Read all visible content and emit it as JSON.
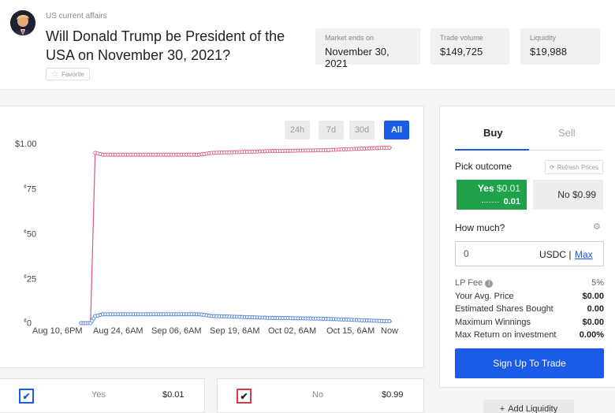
{
  "market": {
    "category": "US current affairs",
    "title": "Will Donald Trump be President of the USA on November 30, 2021?",
    "favorite_label": "Favorite"
  },
  "stats": {
    "ends_label": "Market ends on",
    "ends_value": "November 30, 2021",
    "volume_label": "Trade volume",
    "volume_value": "$149,725",
    "liquidity_label": "Liquidity",
    "liquidity_value": "$19,988"
  },
  "chart_controls": {
    "btn_24h": "24h",
    "btn_7d": "7d",
    "btn_30d": "30d",
    "btn_all": "All",
    "active": "All"
  },
  "chart_data": {
    "type": "line",
    "y_ticks": [
      {
        "sup": "",
        "main": "$1.00",
        "value": 1.0
      },
      {
        "sup": "¢",
        "main": "75",
        "value": 0.75
      },
      {
        "sup": "¢",
        "main": "50",
        "value": 0.5
      },
      {
        "sup": "¢",
        "main": "25",
        "value": 0.25
      },
      {
        "sup": "¢",
        "main": "0",
        "value": 0.0
      }
    ],
    "x_ticks": [
      "Aug 10, 6PM",
      "Aug 24, 6AM",
      "Sep 06, 6AM",
      "Sep 19, 6AM",
      "Oct 02, 6AM",
      "Oct 15, 6AM",
      "Now"
    ],
    "ylim": [
      0,
      1
    ],
    "series": [
      {
        "color": "#d9587a",
        "points": [
          [
            0.0,
            0
          ],
          [
            0.03,
            0
          ],
          [
            0.045,
            0.96
          ],
          [
            0.07,
            0.95
          ],
          [
            0.2,
            0.95
          ],
          [
            0.38,
            0.95
          ],
          [
            0.42,
            0.96
          ],
          [
            0.6,
            0.97
          ],
          [
            0.78,
            0.975
          ],
          [
            0.92,
            0.985
          ],
          [
            1.0,
            0.99
          ]
        ]
      },
      {
        "color": "#4a7fd4",
        "points": [
          [
            0.0,
            0
          ],
          [
            0.03,
            0
          ],
          [
            0.045,
            0.04
          ],
          [
            0.07,
            0.05
          ],
          [
            0.38,
            0.05
          ],
          [
            0.42,
            0.04
          ],
          [
            0.6,
            0.03
          ],
          [
            0.78,
            0.025
          ],
          [
            0.92,
            0.015
          ],
          [
            1.0,
            0.01
          ]
        ]
      }
    ]
  },
  "trade": {
    "tab_buy": "Buy",
    "tab_sell": "Sell",
    "pick_label": "Pick outcome",
    "refresh_label": "Refresh Prices",
    "yes_label": "Yes",
    "yes_price": "$0.01",
    "yes_sub": "0.01",
    "no_label": "No",
    "no_price": "$0.99",
    "how_much": "How much?",
    "amount_value": "0",
    "amount_unit": "USDC |",
    "max_label": "Max",
    "rows": [
      {
        "k": "LP Fee",
        "v": "5%"
      },
      {
        "k": "Your Avg. Price",
        "v": "$0.00"
      },
      {
        "k": "Estimated Shares Bought",
        "v": "0.00"
      },
      {
        "k": "Maximum Winnings",
        "v": "$0.00"
      },
      {
        "k": "Max Return on investment",
        "v": "0.00%"
      }
    ],
    "signup": "Sign Up To Trade"
  },
  "outcomes": [
    {
      "name": "Yes",
      "price": "$0.01",
      "color": "#1a5ce8"
    },
    {
      "name": "No",
      "price": "$0.99",
      "color": "#d23b4b"
    }
  ],
  "add_liquidity": "Add Liquidity"
}
